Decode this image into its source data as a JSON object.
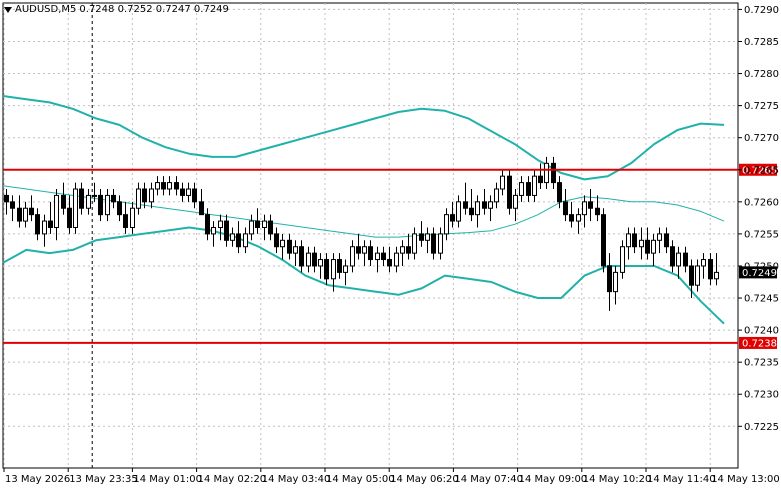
{
  "header": {
    "symbol": "AUDUSD,M5",
    "ohlc": "0.7248 0.7252 0.7247 0.7249"
  },
  "chart_data": {
    "type": "candlestick",
    "ylim": [
      0.72185,
      0.7291
    ],
    "y_ticks": [
      0.7225,
      0.723,
      0.7235,
      0.724,
      0.7245,
      0.725,
      0.7255,
      0.726,
      0.7265,
      0.727,
      0.7275,
      0.728,
      0.7285,
      0.729
    ],
    "x_tick_labels": [
      "13 May 2026",
      "13 May 23:35",
      "14 May 01:00",
      "14 May 02:20",
      "14 May 03:40",
      "14 May 05:00",
      "14 May 06:20",
      "14 May 07:40",
      "14 May 09:00",
      "14 May 10:20",
      "14 May 11:40",
      "14 May 13:00"
    ],
    "current_price": 0.7249,
    "current_price_label": "0.7249",
    "levels": [
      {
        "value": 0.7265,
        "label": "0.7265",
        "color": "#e00000"
      },
      {
        "value": 0.7238,
        "label": "0.7238",
        "color": "#e00000"
      }
    ],
    "candles": [
      [
        0.7261,
        0.7262,
        0.7258,
        0.726
      ],
      [
        0.726,
        0.7261,
        0.7257,
        0.7259
      ],
      [
        0.7259,
        0.7261,
        0.7256,
        0.7257
      ],
      [
        0.7257,
        0.726,
        0.7256,
        0.7259
      ],
      [
        0.7259,
        0.7261,
        0.7257,
        0.7258
      ],
      [
        0.7258,
        0.7259,
        0.7254,
        0.7255
      ],
      [
        0.7255,
        0.7258,
        0.7253,
        0.7257
      ],
      [
        0.7257,
        0.726,
        0.7255,
        0.7256
      ],
      [
        0.7256,
        0.7262,
        0.7254,
        0.7261
      ],
      [
        0.7261,
        0.7263,
        0.7258,
        0.7259
      ],
      [
        0.7259,
        0.7261,
        0.7255,
        0.7256
      ],
      [
        0.7256,
        0.7263,
        0.7255,
        0.7262
      ],
      [
        0.7262,
        0.7263,
        0.7258,
        0.7259
      ],
      [
        0.7259,
        0.7262,
        0.7258,
        0.7261
      ],
      [
        0.7261,
        0.7263,
        0.726,
        0.7261
      ],
      [
        0.7261,
        0.7262,
        0.7257,
        0.7258
      ],
      [
        0.7258,
        0.7262,
        0.7257,
        0.7261
      ],
      [
        0.7261,
        0.7262,
        0.7259,
        0.726
      ],
      [
        0.726,
        0.7261,
        0.7257,
        0.7258
      ],
      [
        0.7258,
        0.726,
        0.7255,
        0.7256
      ],
      [
        0.7256,
        0.726,
        0.7255,
        0.7259
      ],
      [
        0.7259,
        0.7263,
        0.7258,
        0.7262
      ],
      [
        0.7262,
        0.7263,
        0.7259,
        0.726
      ],
      [
        0.726,
        0.7263,
        0.7259,
        0.7262
      ],
      [
        0.7262,
        0.7264,
        0.7261,
        0.7263
      ],
      [
        0.7263,
        0.7264,
        0.7261,
        0.7262
      ],
      [
        0.7262,
        0.7264,
        0.7261,
        0.7263
      ],
      [
        0.7263,
        0.7264,
        0.7261,
        0.7262
      ],
      [
        0.7262,
        0.7263,
        0.726,
        0.7261
      ],
      [
        0.7261,
        0.7263,
        0.726,
        0.7262
      ],
      [
        0.7262,
        0.7263,
        0.7259,
        0.726
      ],
      [
        0.726,
        0.7262,
        0.7258,
        0.7258
      ],
      [
        0.7258,
        0.7259,
        0.7254,
        0.7255
      ],
      [
        0.7255,
        0.7257,
        0.7253,
        0.7256
      ],
      [
        0.7256,
        0.7258,
        0.7254,
        0.7257
      ],
      [
        0.7257,
        0.7258,
        0.7253,
        0.7254
      ],
      [
        0.7254,
        0.7256,
        0.7253,
        0.7255
      ],
      [
        0.7255,
        0.7257,
        0.7252,
        0.7253
      ],
      [
        0.7253,
        0.7256,
        0.7252,
        0.7255
      ],
      [
        0.7255,
        0.7258,
        0.7254,
        0.7257
      ],
      [
        0.7257,
        0.7259,
        0.7255,
        0.7256
      ],
      [
        0.7256,
        0.7258,
        0.7254,
        0.7257
      ],
      [
        0.7257,
        0.7258,
        0.7254,
        0.7255
      ],
      [
        0.7255,
        0.7256,
        0.7252,
        0.7253
      ],
      [
        0.7253,
        0.7255,
        0.7251,
        0.7254
      ],
      [
        0.7254,
        0.7255,
        0.7251,
        0.7252
      ],
      [
        0.7252,
        0.7254,
        0.725,
        0.7253
      ],
      [
        0.7253,
        0.7254,
        0.7249,
        0.725
      ],
      [
        0.725,
        0.7253,
        0.7249,
        0.7252
      ],
      [
        0.7252,
        0.7253,
        0.7249,
        0.725
      ],
      [
        0.725,
        0.7252,
        0.7248,
        0.7251
      ],
      [
        0.7251,
        0.7252,
        0.7247,
        0.7248
      ],
      [
        0.7248,
        0.7252,
        0.7246,
        0.7251
      ],
      [
        0.7251,
        0.7252,
        0.7248,
        0.7249
      ],
      [
        0.7249,
        0.7251,
        0.7247,
        0.725
      ],
      [
        0.725,
        0.7254,
        0.7249,
        0.7253
      ],
      [
        0.7253,
        0.7255,
        0.7251,
        0.7252
      ],
      [
        0.7252,
        0.7254,
        0.725,
        0.7253
      ],
      [
        0.7253,
        0.7254,
        0.725,
        0.7251
      ],
      [
        0.7251,
        0.7253,
        0.7249,
        0.7252
      ],
      [
        0.7252,
        0.7253,
        0.725,
        0.7251
      ],
      [
        0.7251,
        0.7253,
        0.7249,
        0.725
      ],
      [
        0.725,
        0.7253,
        0.7249,
        0.7252
      ],
      [
        0.7252,
        0.7254,
        0.725,
        0.7253
      ],
      [
        0.7253,
        0.7255,
        0.7251,
        0.7252
      ],
      [
        0.7252,
        0.7256,
        0.7251,
        0.7255
      ],
      [
        0.7255,
        0.7257,
        0.7253,
        0.7254
      ],
      [
        0.7254,
        0.7256,
        0.7252,
        0.7255
      ],
      [
        0.7255,
        0.7256,
        0.7251,
        0.7252
      ],
      [
        0.7252,
        0.7256,
        0.7251,
        0.7255
      ],
      [
        0.7255,
        0.7259,
        0.7254,
        0.7258
      ],
      [
        0.7258,
        0.726,
        0.7256,
        0.7257
      ],
      [
        0.7257,
        0.7261,
        0.7256,
        0.726
      ],
      [
        0.726,
        0.7263,
        0.7258,
        0.7259
      ],
      [
        0.7259,
        0.7262,
        0.7257,
        0.7258
      ],
      [
        0.7258,
        0.7261,
        0.7256,
        0.726
      ],
      [
        0.726,
        0.7262,
        0.7258,
        0.7259
      ],
      [
        0.7259,
        0.7261,
        0.7257,
        0.726
      ],
      [
        0.726,
        0.7263,
        0.7259,
        0.7262
      ],
      [
        0.7262,
        0.7265,
        0.7261,
        0.7264
      ],
      [
        0.7264,
        0.7265,
        0.7258,
        0.7259
      ],
      [
        0.7259,
        0.7262,
        0.7257,
        0.7261
      ],
      [
        0.7261,
        0.7264,
        0.726,
        0.7263
      ],
      [
        0.7263,
        0.7264,
        0.726,
        0.7261
      ],
      [
        0.7261,
        0.7265,
        0.726,
        0.7264
      ],
      [
        0.7264,
        0.7266,
        0.7262,
        0.7263
      ],
      [
        0.7263,
        0.7267,
        0.7262,
        0.7266
      ],
      [
        0.7266,
        0.7267,
        0.7262,
        0.7263
      ],
      [
        0.7263,
        0.7264,
        0.7259,
        0.726
      ],
      [
        0.726,
        0.7262,
        0.7257,
        0.7258
      ],
      [
        0.7258,
        0.726,
        0.7256,
        0.7257
      ],
      [
        0.7257,
        0.7259,
        0.7255,
        0.7258
      ],
      [
        0.7258,
        0.7261,
        0.7256,
        0.726
      ],
      [
        0.726,
        0.7262,
        0.7257,
        0.7259
      ],
      [
        0.7259,
        0.7261,
        0.7257,
        0.7258
      ],
      [
        0.7258,
        0.7259,
        0.7249,
        0.725
      ],
      [
        0.725,
        0.7252,
        0.7243,
        0.7246
      ],
      [
        0.7246,
        0.725,
        0.7244,
        0.7249
      ],
      [
        0.7249,
        0.7254,
        0.7248,
        0.7253
      ],
      [
        0.7253,
        0.7256,
        0.7251,
        0.7255
      ],
      [
        0.7255,
        0.7256,
        0.7252,
        0.7253
      ],
      [
        0.7253,
        0.7256,
        0.7251,
        0.7254
      ],
      [
        0.7254,
        0.7256,
        0.7251,
        0.7252
      ],
      [
        0.7252,
        0.7255,
        0.725,
        0.7254
      ],
      [
        0.7254,
        0.7256,
        0.7252,
        0.7255
      ],
      [
        0.7255,
        0.7256,
        0.7252,
        0.7253
      ],
      [
        0.7253,
        0.7254,
        0.7249,
        0.725
      ],
      [
        0.725,
        0.7253,
        0.7248,
        0.7252
      ],
      [
        0.7252,
        0.7253,
        0.7249,
        0.725
      ],
      [
        0.725,
        0.7251,
        0.7245,
        0.7247
      ],
      [
        0.7247,
        0.7251,
        0.7246,
        0.725
      ],
      [
        0.725,
        0.7252,
        0.7248,
        0.7251
      ],
      [
        0.7251,
        0.7252,
        0.7247,
        0.7248
      ],
      [
        0.7248,
        0.7252,
        0.7247,
        0.7249
      ]
    ],
    "bollinger_upper": [
      0.72765,
      0.7276,
      0.72755,
      0.72745,
      0.7273,
      0.7272,
      0.727,
      0.72685,
      0.72675,
      0.7267,
      0.7267,
      0.7268,
      0.7269,
      0.727,
      0.7271,
      0.7272,
      0.7273,
      0.7274,
      0.72745,
      0.72742,
      0.7273,
      0.7271,
      0.7269,
      0.72665,
      0.72645,
      0.72635,
      0.7264,
      0.7266,
      0.7269,
      0.72712,
      0.72722,
      0.7272
    ],
    "bollinger_middle": [
      0.72625,
      0.7262,
      0.72615,
      0.7261,
      0.72605,
      0.726,
      0.72595,
      0.7259,
      0.72585,
      0.7258,
      0.72575,
      0.7257,
      0.72565,
      0.7256,
      0.72555,
      0.7255,
      0.72545,
      0.72545,
      0.72548,
      0.7255,
      0.72552,
      0.72555,
      0.72565,
      0.7258,
      0.726,
      0.72608,
      0.72605,
      0.726,
      0.726,
      0.72595,
      0.72585,
      0.7257
    ],
    "bollinger_lower": [
      0.72505,
      0.72525,
      0.7252,
      0.72525,
      0.7254,
      0.72545,
      0.7255,
      0.72555,
      0.7256,
      0.72555,
      0.72545,
      0.7253,
      0.7251,
      0.72485,
      0.7247,
      0.72465,
      0.7246,
      0.72455,
      0.72465,
      0.72485,
      0.7248,
      0.72475,
      0.7246,
      0.7245,
      0.7245,
      0.72485,
      0.725,
      0.725,
      0.725,
      0.72485,
      0.72445,
      0.7241
    ]
  }
}
